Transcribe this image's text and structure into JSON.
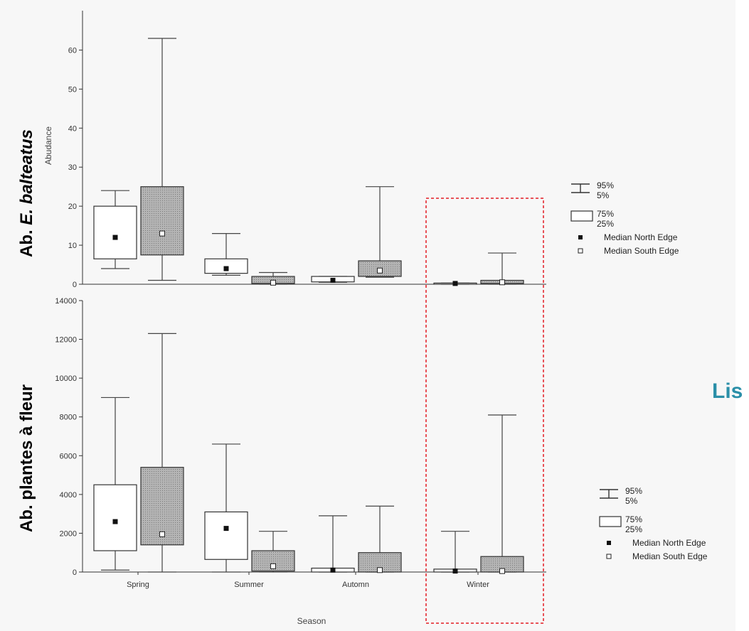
{
  "chart_data": [
    {
      "type": "box",
      "panel": "top",
      "side_label_prefix": "Ab. ",
      "side_label_species": "E. balteatus",
      "ylabel": "Abudance",
      "ylim": [
        0,
        65
      ],
      "yticks": [
        0,
        10,
        20,
        30,
        40,
        50,
        60
      ],
      "categories": [
        "Spring",
        "Summer",
        "Automn",
        "Winter"
      ],
      "series": [
        {
          "name": "North Edge",
          "fill": "#ffffff",
          "boxes": [
            {
              "p5": 4,
              "p25": 6.5,
              "median": 12,
              "p75": 20,
              "p95": 24
            },
            {
              "p5": 2.3,
              "p25": 2.8,
              "median": 4,
              "p75": 6.5,
              "p95": 13
            },
            {
              "p5": 0.5,
              "p25": 0.6,
              "median": 1,
              "p75": 2,
              "p95": 2
            },
            {
              "p5": 0,
              "p25": 0,
              "median": 0.2,
              "p75": 0.3,
              "p95": 0.3
            }
          ]
        },
        {
          "name": "South Edge",
          "fill": "#a8a8a8",
          "boxes": [
            {
              "p5": 1,
              "p25": 7.5,
              "median": 13,
              "p75": 25,
              "p95": 63
            },
            {
              "p5": 0,
              "p25": 0.2,
              "median": 0.4,
              "p75": 2,
              "p95": 3
            },
            {
              "p5": 1.8,
              "p25": 2,
              "median": 3.5,
              "p75": 6,
              "p95": 25
            },
            {
              "p5": 0,
              "p25": 0.2,
              "median": 0.5,
              "p75": 1,
              "p95": 8
            }
          ]
        }
      ]
    },
    {
      "type": "box",
      "panel": "bottom",
      "side_label": "Ab. plantes à fleur",
      "ylabel": "",
      "xlabel": "Season",
      "ylim": [
        0,
        14000
      ],
      "yticks": [
        0,
        2000,
        4000,
        6000,
        8000,
        10000,
        12000,
        14000
      ],
      "categories": [
        "Spring",
        "Summer",
        "Automn",
        "Winter"
      ],
      "series": [
        {
          "name": "North Edge",
          "fill": "#ffffff",
          "boxes": [
            {
              "p5": 100,
              "p25": 1100,
              "median": 2600,
              "p75": 4500,
              "p95": 9000
            },
            {
              "p5": 0,
              "p25": 650,
              "median": 2250,
              "p75": 3100,
              "p95": 6600
            },
            {
              "p5": 0,
              "p25": 0,
              "median": 100,
              "p75": 200,
              "p95": 2900
            },
            {
              "p5": 0,
              "p25": 0,
              "median": 50,
              "p75": 150,
              "p95": 2100
            }
          ]
        },
        {
          "name": "South Edge",
          "fill": "#a8a8a8",
          "boxes": [
            {
              "p5": 0,
              "p25": 1400,
              "median": 1950,
              "p75": 5400,
              "p95": 12300
            },
            {
              "p5": 0,
              "p25": 50,
              "median": 300,
              "p75": 1100,
              "p95": 2100
            },
            {
              "p5": 0,
              "p25": 0,
              "median": 100,
              "p75": 1000,
              "p95": 3400
            },
            {
              "p5": 0,
              "p25": 0,
              "median": 50,
              "p75": 800,
              "p95": 8100
            }
          ]
        }
      ]
    }
  ],
  "legend": {
    "whisker_top": "95%",
    "whisker_bottom": "5%",
    "box_top": "75%",
    "box_bottom": "25%",
    "north": "Median North Edge",
    "south": "Median South Edge"
  },
  "highlight_category": "Winter",
  "highlight_color": "#e31b23",
  "cut_text": "Lis",
  "accent_color": "#2a8fa8"
}
